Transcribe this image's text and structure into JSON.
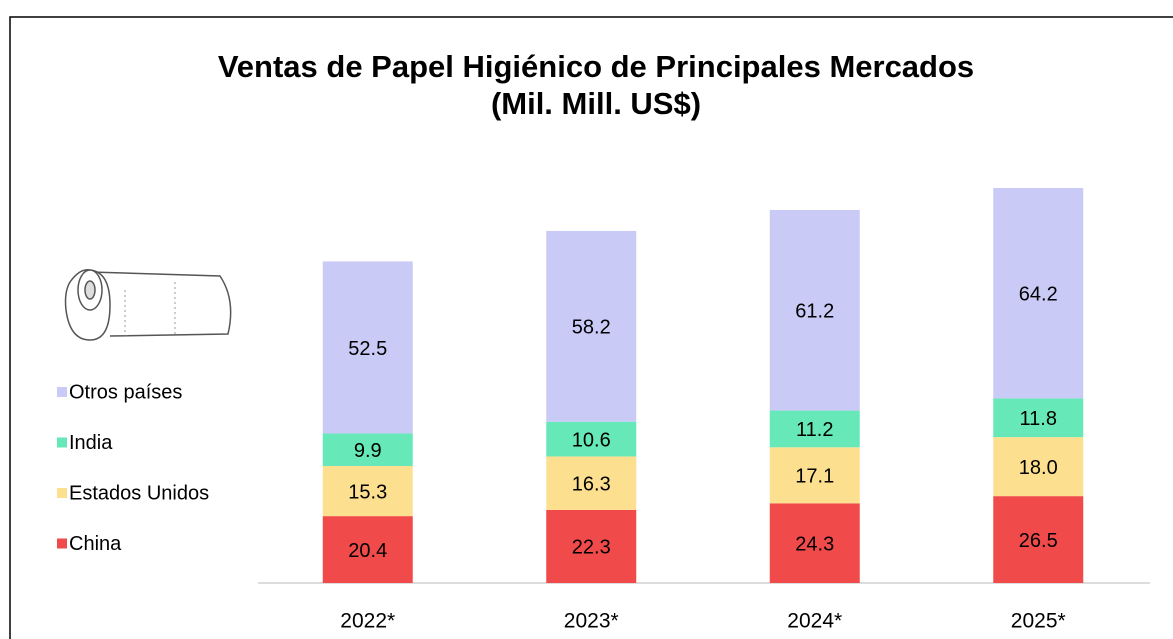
{
  "chart_data": {
    "type": "stacked_bar",
    "title": "Ventas de Papel Higiénico de Principales Mercados",
    "subtitle": "(Mil. Mill. US$)",
    "categories": [
      "2022*",
      "2023*",
      "2024*",
      "2025*"
    ],
    "series": [
      {
        "name": "China",
        "color": "#f04a4a",
        "values": [
          20.4,
          22.3,
          24.3,
          26.5
        ],
        "value_labels": [
          "20.4",
          "22.3",
          "24.3",
          "26.5"
        ]
      },
      {
        "name": "Estados Unidos",
        "color": "#fde08f",
        "values": [
          15.3,
          16.3,
          17.1,
          18
        ],
        "value_labels": [
          "15.3",
          "16.3",
          "17.1",
          "18.0"
        ]
      },
      {
        "name": "India",
        "color": "#66e8b8",
        "values": [
          9.9,
          10.6,
          11.2,
          11.8
        ],
        "value_labels": [
          "9.9",
          "10.6",
          "11.2",
          "11.8"
        ]
      },
      {
        "name": "Otros países",
        "color": "#cacaf7",
        "values": [
          52.5,
          58.2,
          61.2,
          64.2
        ],
        "value_labels": [
          "52.5",
          "58.2",
          "61.2",
          "64.2"
        ]
      }
    ],
    "legend": "left"
  }
}
